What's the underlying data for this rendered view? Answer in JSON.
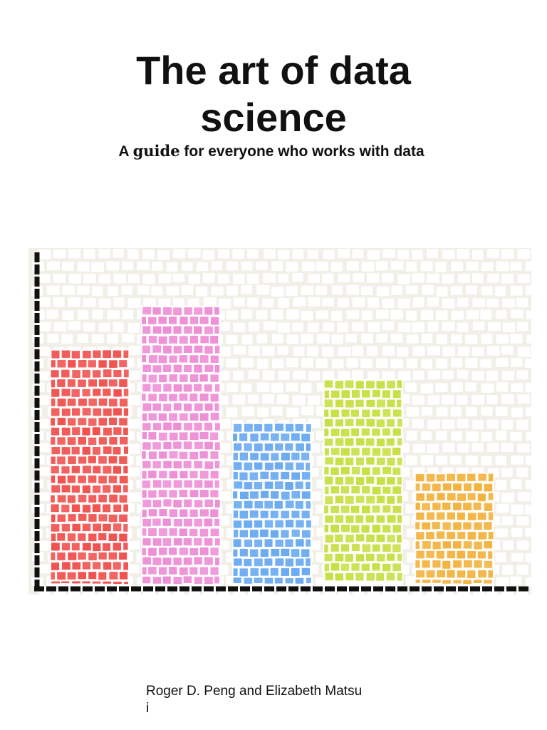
{
  "cover": {
    "title_line1": "The art of data",
    "title_line2": "science",
    "subtitle_a": "A ",
    "subtitle_guide": "guide",
    "subtitle_rest": " for everyone who works with data",
    "authors_name1": "Roger D. Peng",
    "authors_and": " and ",
    "authors_name2": "Elizabeth Matsu",
    "authors_tail": "i"
  },
  "colors": {
    "background": "#ffffff",
    "grout": "#f2efe8",
    "tile": "#ffffff",
    "axis": "#111111",
    "bar_red": "#f0524f",
    "bar_pink": "#ee8fd6",
    "bar_blue": "#6aaaf0",
    "bar_green": "#c8df45",
    "bar_orange": "#f3b33f"
  },
  "chart_data": {
    "type": "bar",
    "categories": [
      "",
      "",
      "",
      "",
      ""
    ],
    "values": [
      71,
      84,
      49,
      62,
      34
    ],
    "ylim": [
      0,
      100
    ],
    "grid": false,
    "colors": [
      "#f0524f",
      "#ee8fd6",
      "#6aaaf0",
      "#c8df45",
      "#f3b33f"
    ],
    "title": "",
    "xlabel": "",
    "ylabel": ""
  }
}
